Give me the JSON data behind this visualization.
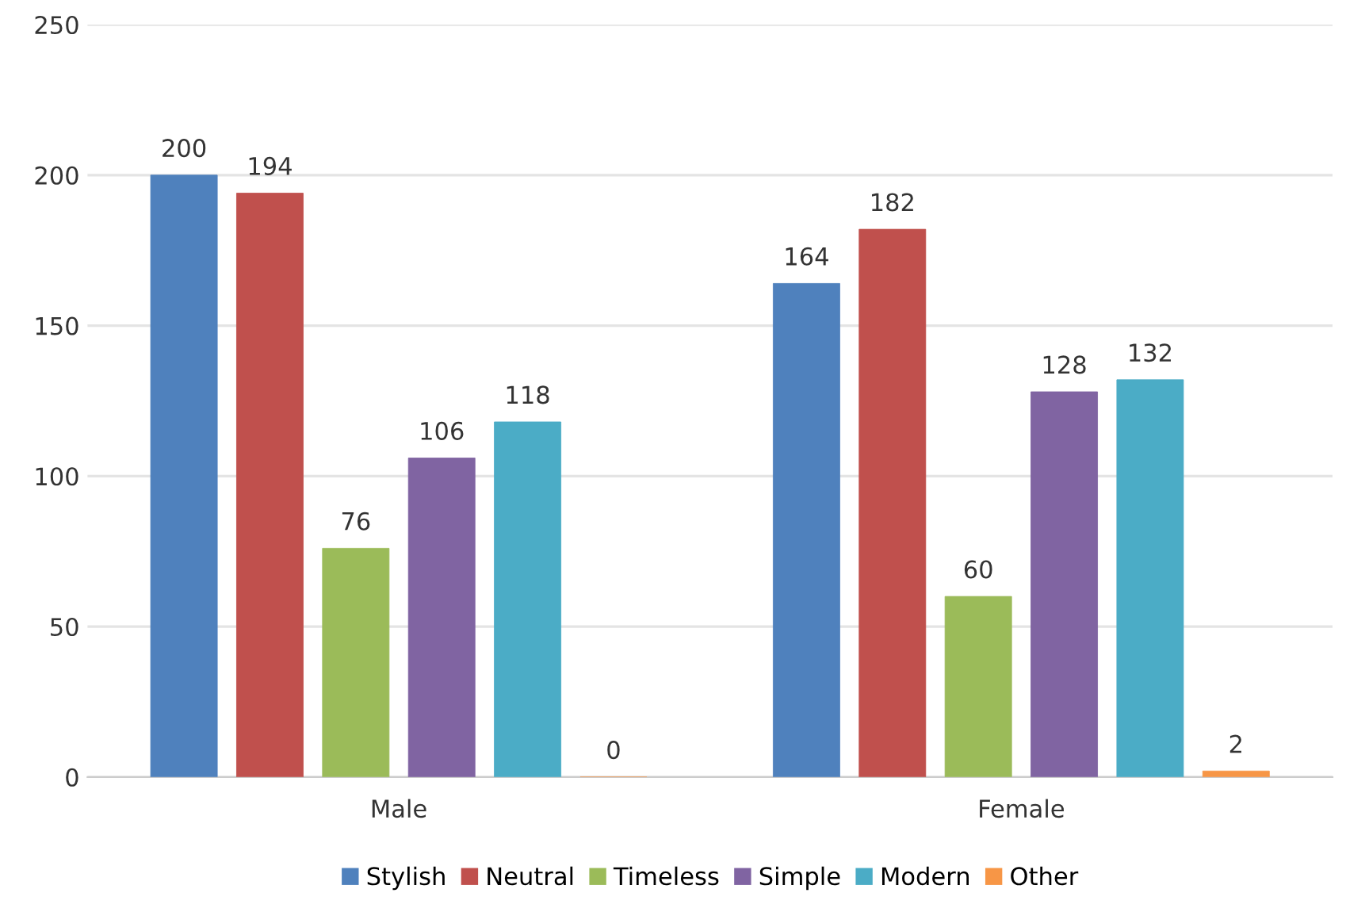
{
  "chart_data": {
    "type": "bar",
    "categories": [
      "Male",
      "Female"
    ],
    "series": [
      {
        "name": "Stylish",
        "color": "#4f81bd",
        "values": [
          200,
          164
        ]
      },
      {
        "name": "Neutral",
        "color": "#c0504d",
        "values": [
          194,
          182
        ]
      },
      {
        "name": "Timeless",
        "color": "#9bbb59",
        "values": [
          76,
          60
        ]
      },
      {
        "name": "Simple",
        "color": "#8064a2",
        "values": [
          106,
          128
        ]
      },
      {
        "name": "Modern",
        "color": "#4bacc6",
        "values": [
          118,
          132
        ]
      },
      {
        "name": "Other",
        "color": "#f79646",
        "values": [
          0,
          2
        ]
      }
    ],
    "ylim": [
      0,
      250
    ],
    "yticks": [
      0,
      50,
      100,
      150,
      200,
      250
    ],
    "grid": "y",
    "legend": "bottom",
    "data_labels": true
  }
}
